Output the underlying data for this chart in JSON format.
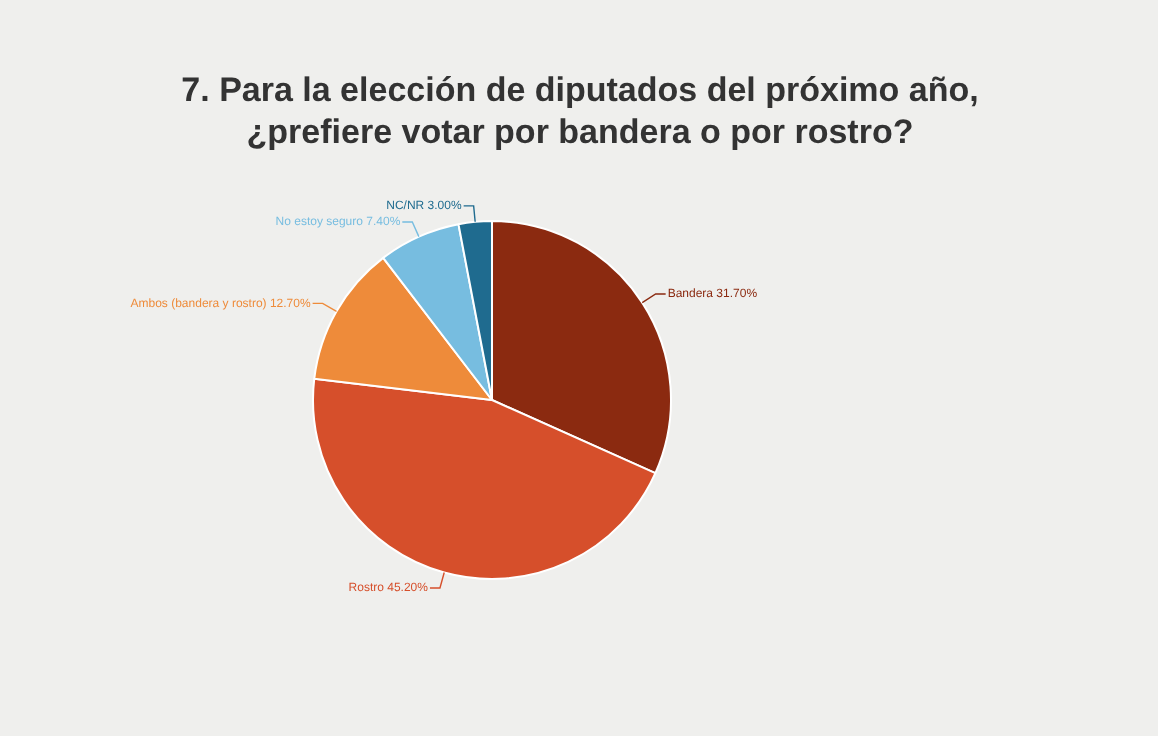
{
  "chart_data": {
    "type": "pie",
    "title": "7. Para la elección de diputados del próximo año,\n¿prefiere votar por bandera o por rostro?",
    "categories": [
      "Bandera",
      "Rostro",
      "Ambos (bandera y rostro)",
      "No estoy seguro",
      "NC/NR"
    ],
    "values": [
      31.7,
      45.2,
      12.7,
      7.4,
      3.0
    ],
    "value_labels": [
      "31.70%",
      "45.20%",
      "12.70%",
      "7.40%",
      "3.00%"
    ],
    "colors": [
      "#8b2a10",
      "#d64f2b",
      "#ee8b3a",
      "#77bde0",
      "#1f6b8f"
    ],
    "legend": false
  }
}
